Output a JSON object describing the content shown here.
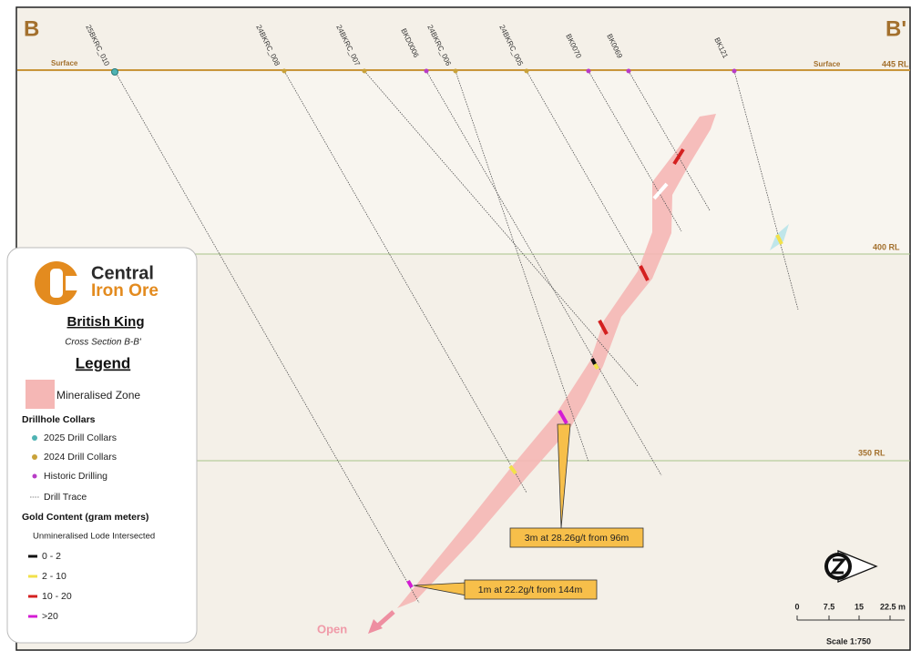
{
  "section": {
    "left_label": "B",
    "right_label": "B'",
    "surface_left": "Surface",
    "surface_right": "Surface",
    "levels": [
      "445 RL",
      "400 RL",
      "350 RL"
    ],
    "holes": [
      "25BKRC_010",
      "24BKRC_008",
      "24BKRC_007",
      "BKD0006",
      "24BKRC_006",
      "24BKRC_005",
      "BK0070",
      "BK0069",
      "BK121"
    ],
    "callouts": [
      "3m at 28.26g/t from 96m",
      "1m at 22.2g/t from 144m"
    ],
    "open": "Open"
  },
  "legend": {
    "company_line1": "Central",
    "company_line2": "Iron Ore",
    "project": "British King",
    "subtitle": "Cross Section B-B'",
    "heading": "Legend",
    "zone": "Mineralised Zone",
    "collars_heading": "Drillhole Collars",
    "collars": [
      "2025 Drill Collars",
      "2024 Drill Collars",
      "Historic Drilling",
      "Drill Trace"
    ],
    "gold_heading": "Gold Content (gram meters)",
    "unmineralised": "Unmineralised Lode Intersected",
    "gold_ranges": [
      "0 - 2",
      "2 - 10",
      "10 - 20",
      ">20"
    ]
  },
  "scale": {
    "ticks": [
      "0",
      "7.5",
      "15",
      "22.5 m"
    ],
    "label": "Scale 1:750"
  }
}
